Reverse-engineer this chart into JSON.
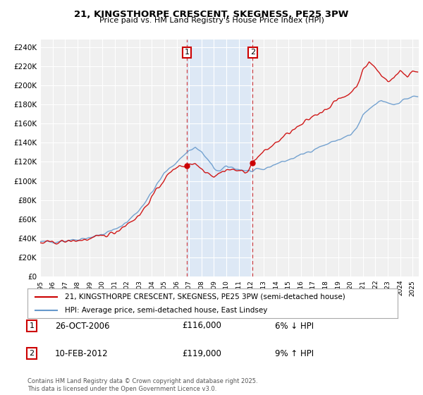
{
  "title1": "21, KINGSTHORPE CRESCENT, SKEGNESS, PE25 3PW",
  "title2": "Price paid vs. HM Land Registry's House Price Index (HPI)",
  "ylabel_ticks": [
    "£0",
    "£20K",
    "£40K",
    "£60K",
    "£80K",
    "£100K",
    "£120K",
    "£140K",
    "£160K",
    "£180K",
    "£200K",
    "£220K",
    "£240K"
  ],
  "ytick_values": [
    0,
    20000,
    40000,
    60000,
    80000,
    100000,
    120000,
    140000,
    160000,
    180000,
    200000,
    220000,
    240000
  ],
  "ylim": [
    0,
    248000
  ],
  "xlim_min": 1995.0,
  "xlim_max": 2025.5,
  "legend1": "21, KINGSTHORPE CRESCENT, SKEGNESS, PE25 3PW (semi-detached house)",
  "legend2": "HPI: Average price, semi-detached house, East Lindsey",
  "annotation1_label": "1",
  "annotation1_date": "26-OCT-2006",
  "annotation1_price": "£116,000",
  "annotation1_change": "6% ↓ HPI",
  "annotation2_label": "2",
  "annotation2_date": "10-FEB-2012",
  "annotation2_price": "£119,000",
  "annotation2_change": "9% ↑ HPI",
  "footnote": "Contains HM Land Registry data © Crown copyright and database right 2025.\nThis data is licensed under the Open Government Licence v3.0.",
  "sale1_x": 2006.82,
  "sale1_y": 116000,
  "sale2_x": 2012.11,
  "sale2_y": 119000,
  "background_color": "#f0f0f0",
  "line_color_hpi": "#6699cc",
  "line_color_price": "#cc0000",
  "shade_color": "#dde8f5",
  "grid_color": "#ffffff",
  "annotation_box_color": "#cc0000"
}
